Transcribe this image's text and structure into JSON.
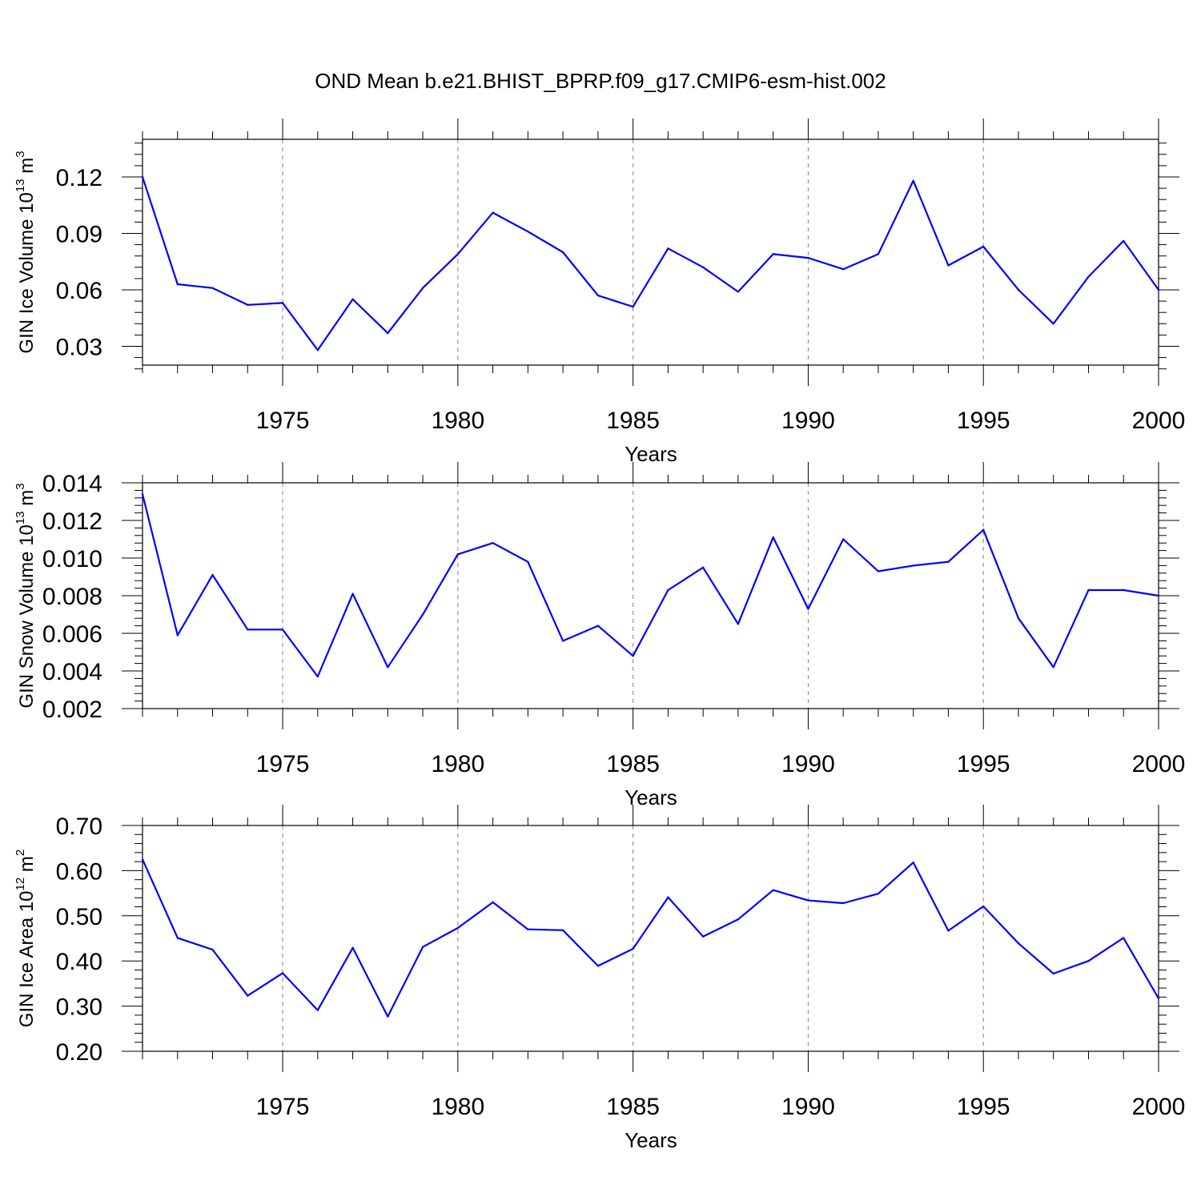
{
  "title": "OND Mean b.e21.BHIST_BPRP.f09_g17.CMIP6-esm-hist.002",
  "colors": {
    "line": "#0000ff",
    "axis": "#000000",
    "grid": "#808080"
  },
  "chart_data": [
    {
      "type": "line",
      "ylabel": "GIN Ice Volume 10",
      "ylabel_sup": "13",
      "ylabel_unit": "m",
      "ylabel_unit_sup": "3",
      "xlabel": "Years",
      "xlim": [
        1971,
        2000
      ],
      "ylim": [
        0.02,
        0.14
      ],
      "yticks": [
        0.03,
        0.06,
        0.09,
        0.12
      ],
      "ytick_labels": [
        "0.03",
        "0.06",
        "0.09",
        "0.12"
      ],
      "xticks": [
        1975,
        1980,
        1985,
        1990,
        1995,
        2000
      ],
      "xtick_labels": [
        "1975",
        "1980",
        "1985",
        "1990",
        "1995",
        "2000"
      ],
      "grid": "vertical dashed at major x ticks",
      "x": [
        1971,
        1972,
        1973,
        1974,
        1975,
        1976,
        1977,
        1978,
        1979,
        1980,
        1981,
        1982,
        1983,
        1984,
        1985,
        1986,
        1987,
        1988,
        1989,
        1990,
        1991,
        1992,
        1993,
        1994,
        1995,
        1996,
        1997,
        1998,
        1999,
        2000
      ],
      "series": [
        {
          "values": [
            0.12,
            0.063,
            0.061,
            0.052,
            0.053,
            0.028,
            0.055,
            0.037,
            0.061,
            0.079,
            0.101,
            0.091,
            0.08,
            0.057,
            0.051,
            0.082,
            0.072,
            0.059,
            0.079,
            0.077,
            0.071,
            0.079,
            0.118,
            0.073,
            0.083,
            0.06,
            0.042,
            0.067,
            0.086,
            0.06
          ]
        }
      ]
    },
    {
      "type": "line",
      "ylabel": "GIN Snow Volume 10",
      "ylabel_sup": "13",
      "ylabel_unit": "m",
      "ylabel_unit_sup": "3",
      "xlabel": "Years",
      "xlim": [
        1971,
        2000
      ],
      "ylim": [
        0.002,
        0.014
      ],
      "yticks": [
        0.002,
        0.004,
        0.006,
        0.008,
        0.01,
        0.012,
        0.014
      ],
      "ytick_labels": [
        "0.002",
        "0.004",
        "0.006",
        "0.008",
        "0.010",
        "0.012",
        "0.014"
      ],
      "xticks": [
        1975,
        1980,
        1985,
        1990,
        1995,
        2000
      ],
      "xtick_labels": [
        "1975",
        "1980",
        "1985",
        "1990",
        "1995",
        "2000"
      ],
      "grid": "vertical dashed at major x ticks",
      "x": [
        1971,
        1972,
        1973,
        1974,
        1975,
        1976,
        1977,
        1978,
        1979,
        1980,
        1981,
        1982,
        1983,
        1984,
        1985,
        1986,
        1987,
        1988,
        1989,
        1990,
        1991,
        1992,
        1993,
        1994,
        1995,
        1996,
        1997,
        1998,
        1999,
        2000
      ],
      "series": [
        {
          "values": [
            0.0134,
            0.0059,
            0.0091,
            0.0062,
            0.0062,
            0.0037,
            0.0081,
            0.0042,
            0.007,
            0.0102,
            0.0108,
            0.0098,
            0.0056,
            0.0064,
            0.0048,
            0.0083,
            0.0095,
            0.0065,
            0.0111,
            0.0073,
            0.011,
            0.0093,
            0.0096,
            0.0098,
            0.0115,
            0.0068,
            0.0042,
            0.0083,
            0.0083,
            0.008
          ]
        }
      ]
    },
    {
      "type": "line",
      "ylabel": "GIN Ice Area 10",
      "ylabel_sup": "12",
      "ylabel_unit": "m",
      "ylabel_unit_sup": "2",
      "xlabel": "Years",
      "xlim": [
        1971,
        2000
      ],
      "ylim": [
        0.2,
        0.7
      ],
      "yticks": [
        0.2,
        0.3,
        0.4,
        0.5,
        0.6,
        0.7
      ],
      "ytick_labels": [
        "0.20",
        "0.30",
        "0.40",
        "0.50",
        "0.60",
        "0.70"
      ],
      "xticks": [
        1975,
        1980,
        1985,
        1990,
        1995,
        2000
      ],
      "xtick_labels": [
        "1975",
        "1980",
        "1985",
        "1990",
        "1995",
        "2000"
      ],
      "grid": "vertical dashed at major x ticks",
      "x": [
        1971,
        1972,
        1973,
        1974,
        1975,
        1976,
        1977,
        1978,
        1979,
        1980,
        1981,
        1982,
        1983,
        1984,
        1985,
        1986,
        1987,
        1988,
        1989,
        1990,
        1991,
        1992,
        1993,
        1994,
        1995,
        1996,
        1997,
        1998,
        1999,
        2000
      ],
      "series": [
        {
          "values": [
            0.625,
            0.451,
            0.425,
            0.323,
            0.373,
            0.291,
            0.429,
            0.277,
            0.431,
            0.473,
            0.53,
            0.47,
            0.468,
            0.389,
            0.427,
            0.541,
            0.454,
            0.492,
            0.557,
            0.534,
            0.528,
            0.549,
            0.618,
            0.467,
            0.521,
            0.439,
            0.372,
            0.4,
            0.451,
            0.317
          ]
        }
      ]
    }
  ]
}
